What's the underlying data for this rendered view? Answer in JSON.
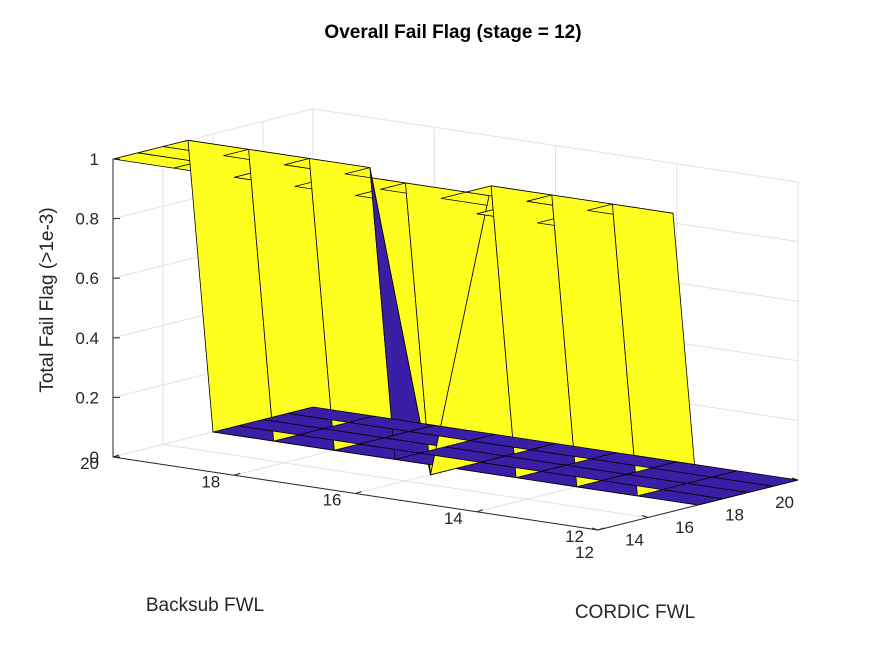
{
  "chart_data": {
    "type": "surface",
    "title": "Overall Fail Flag (stage = 12)",
    "xlabel": "CORDIC FWL",
    "ylabel": "Backsub FWL",
    "zlabel": "Total Fail Flag (>1e-3)",
    "x": [
      12,
      13,
      14,
      15,
      16,
      17,
      18,
      19,
      20
    ],
    "y": [
      12,
      13,
      14,
      15,
      16,
      17,
      18,
      19,
      20
    ],
    "xlim": [
      12,
      20
    ],
    "ylim": [
      12,
      20
    ],
    "zlim": [
      0,
      1
    ],
    "xticks": [
      "12",
      "14",
      "16",
      "18",
      "20"
    ],
    "yticks": [
      "12",
      "14",
      "16",
      "18",
      "20"
    ],
    "zticks": [
      "0",
      "0.2",
      "0.4",
      "0.6",
      "0.8",
      "1"
    ],
    "z_rows_by_backsub": [
      [
        1,
        1,
        1,
        1,
        0,
        0,
        0,
        0,
        0
      ],
      [
        1,
        1,
        1,
        1,
        0,
        0,
        0,
        0,
        0
      ],
      [
        1,
        1,
        1,
        1,
        0,
        0,
        0,
        0,
        0
      ],
      [
        1,
        1,
        1,
        1,
        0,
        0,
        0,
        0,
        0
      ],
      [
        1,
        1,
        1,
        0,
        0,
        0,
        0,
        0,
        0
      ],
      [
        1,
        1,
        1,
        1,
        0,
        0,
        0,
        0,
        0
      ],
      [
        1,
        1,
        1,
        1,
        0,
        0,
        0,
        0,
        0
      ],
      [
        1,
        1,
        1,
        1,
        0,
        0,
        0,
        0,
        0
      ],
      [
        1,
        1,
        1,
        1,
        0,
        0,
        0,
        0,
        0
      ]
    ],
    "colormap": {
      "low": "#3a1fa6",
      "high": "#ffff1f"
    },
    "grid": true,
    "view": "3d"
  }
}
